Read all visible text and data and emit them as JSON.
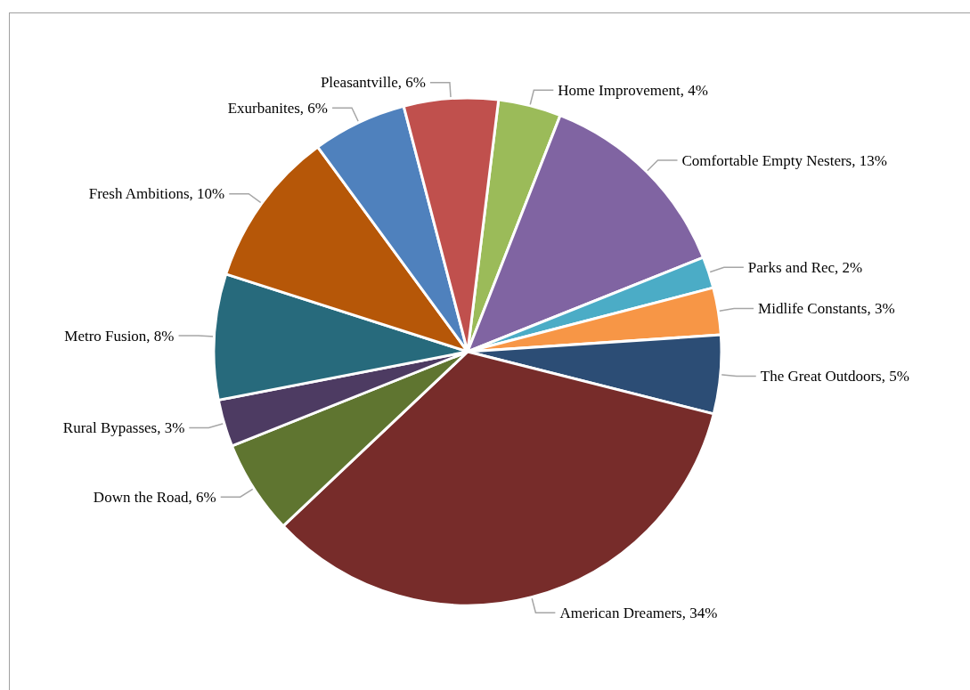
{
  "chart_data": {
    "type": "pie",
    "categories": [
      "Home Improvement",
      "Comfortable Empty Nesters",
      "Parks and Rec",
      "Midlife Constants",
      "The Great Outdoors",
      "American Dreamers",
      "Down the Road",
      "Rural Bypasses",
      "Metro Fusion",
      "Fresh Ambitions",
      "Exurbanites",
      "Pleasantville"
    ],
    "values": [
      4,
      13,
      2,
      3,
      5,
      34,
      6,
      3,
      8,
      10,
      6,
      6
    ],
    "value_labels": [
      "4%",
      "13%",
      "2%",
      "3%",
      "5%",
      "34%",
      "6%",
      "3%",
      "8%",
      "10%",
      "6%",
      "6%"
    ],
    "colors": [
      "#9bbb59",
      "#8064a2",
      "#4bacc6",
      "#f79646",
      "#2c4d75",
      "#772c2a",
      "#5f7530",
      "#4d3b62",
      "#276a7c",
      "#b65708",
      "#4f81bd",
      "#c0504d"
    ],
    "legend": false
  }
}
